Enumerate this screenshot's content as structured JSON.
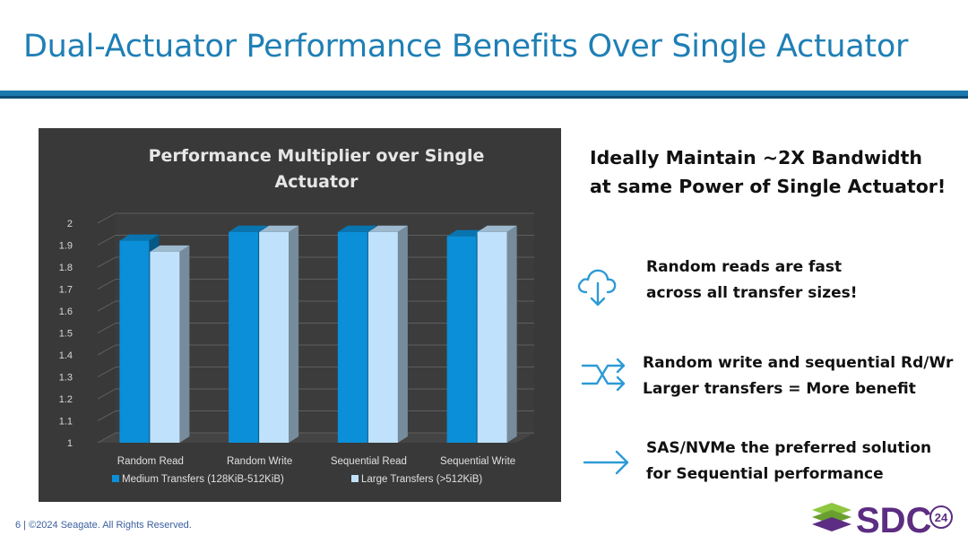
{
  "slide": {
    "title": "Dual-Actuator Performance Benefits Over Single Actuator",
    "headline": [
      "Ideally Maintain ~2X Bandwidth",
      "at same Power of Single Actuator!"
    ],
    "points": [
      {
        "icon": "cloud-download-icon",
        "lines": [
          "Random reads are fast",
          "across all transfer sizes!"
        ]
      },
      {
        "icon": "shuffle-arrows-icon",
        "lines": [
          "Random write and sequential Rd/Wr",
          "Larger transfers = More benefit"
        ]
      },
      {
        "icon": "arrow-right-icon",
        "lines": [
          "SAS/NVMe the preferred solution",
          "for Sequential performance"
        ]
      }
    ],
    "footer": "6 | ©2024 Seagate. All Rights Reserved.",
    "logo": {
      "text": "SDC",
      "badge": "24"
    }
  },
  "colors": {
    "title": "#1f7fb5",
    "accent_bar": "#1b78ad",
    "icon": "#2e9ad6",
    "chart_background": "#393939",
    "series_medium": "#0a8fd8",
    "series_large": "#bfe1fb",
    "logo_purple": "#5c2d82",
    "logo_green": "#8dc63f"
  },
  "chart_data": {
    "type": "bar",
    "style": "3d-clustered-column",
    "title_lines": [
      "Performance Multiplier over Single",
      "Actuator"
    ],
    "categories": [
      "Random Read",
      "Random Write",
      "Sequential Read",
      "Sequential Write"
    ],
    "series": [
      {
        "name": "Medium Transfers (128KiB-512KiB)",
        "values": [
          1.92,
          1.96,
          1.96,
          1.94
        ]
      },
      {
        "name": "Large Transfers (>512KiB)",
        "values": [
          1.87,
          1.96,
          1.96,
          1.96
        ]
      }
    ],
    "ylim": [
      1,
      2
    ],
    "yticks": [
      "1",
      "1.1",
      "1.2",
      "1.3",
      "1.4",
      "1.5",
      "1.6",
      "1.7",
      "1.8",
      "1.9",
      "2"
    ],
    "grid": true,
    "legend": "bottom"
  }
}
